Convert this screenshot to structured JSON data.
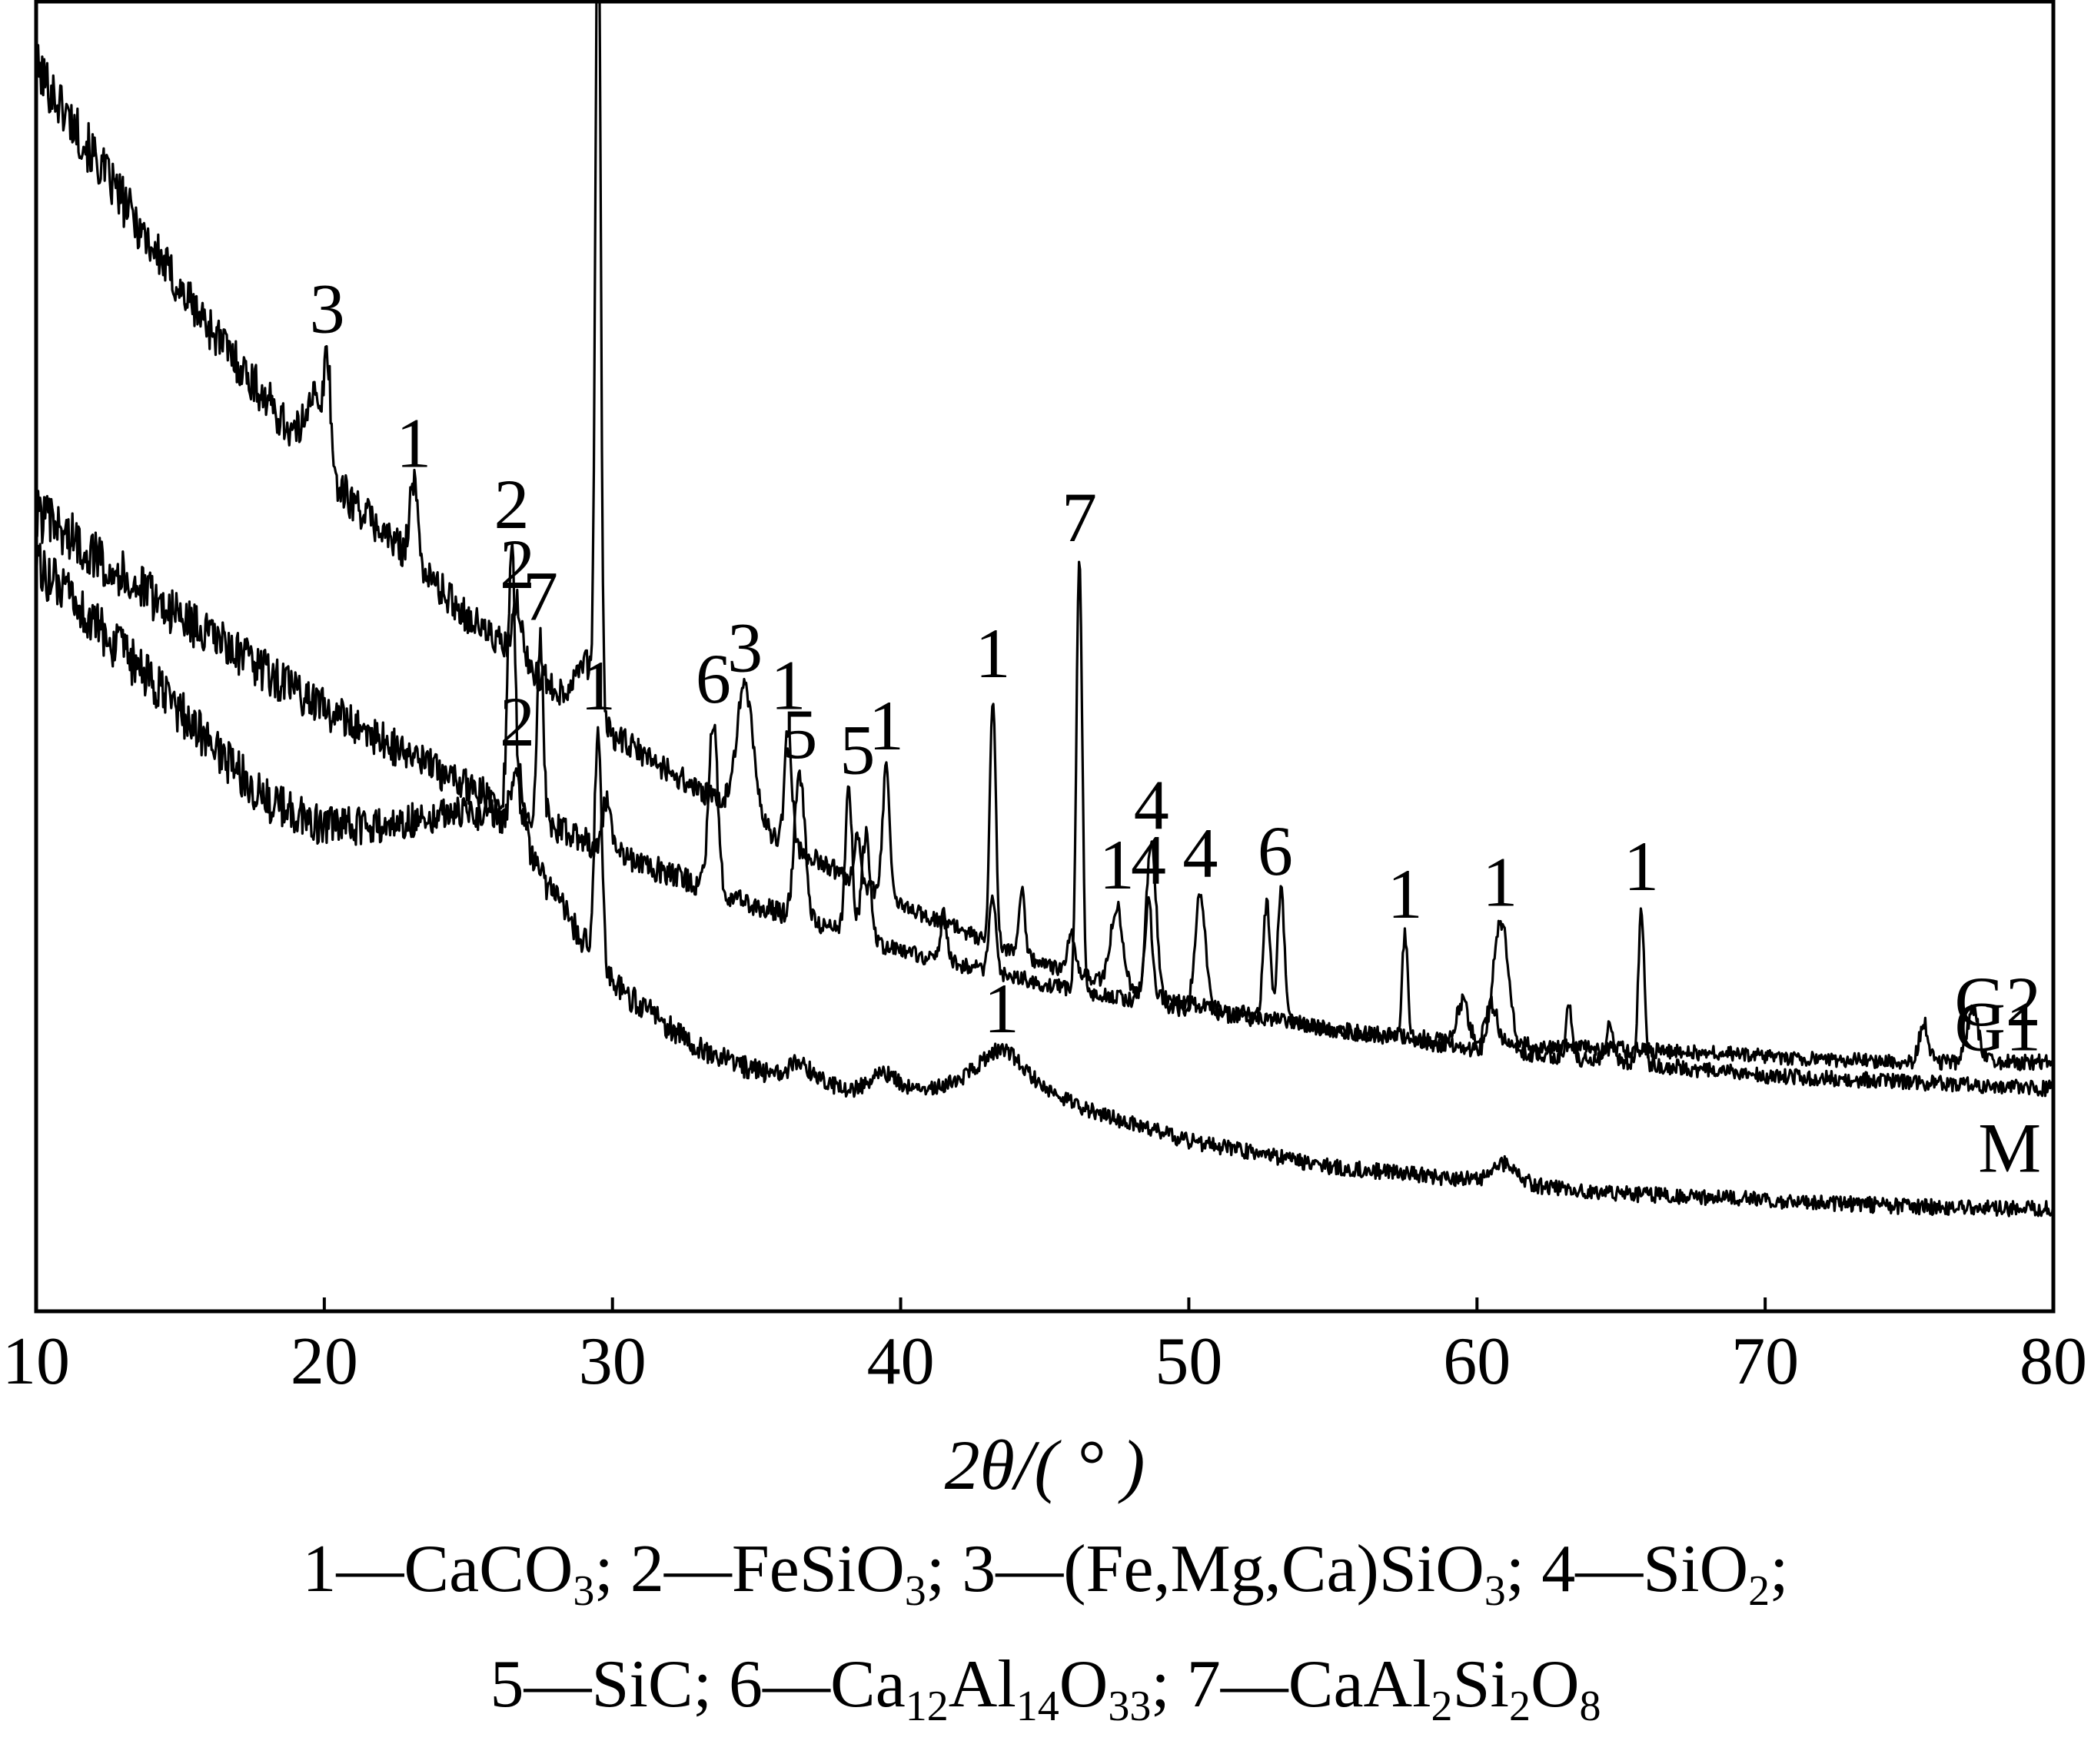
{
  "chart_data": {
    "type": "line",
    "title": "",
    "xlabel": "2θ/( ° )",
    "ylabel": "",
    "xlim": [
      10,
      80
    ],
    "xticks": [
      10,
      20,
      30,
      40,
      50,
      60,
      70,
      80
    ],
    "grid": false,
    "y_axis_shown": false,
    "curve_color": "#000000",
    "series": [
      {
        "name": "G1",
        "baseline": [
          [
            10,
            0.95
          ],
          [
            15,
            0.78
          ],
          [
            20,
            0.64
          ],
          [
            25,
            0.53
          ],
          [
            30,
            0.44
          ],
          [
            35,
            0.37
          ],
          [
            40,
            0.31
          ],
          [
            45,
            0.265
          ],
          [
            50,
            0.235
          ],
          [
            55,
            0.215
          ],
          [
            60,
            0.2
          ],
          [
            65,
            0.19
          ],
          [
            70,
            0.18
          ],
          [
            75,
            0.175
          ],
          [
            80,
            0.17
          ]
        ],
        "peaks": [
          {
            "x": 19.6,
            "h": 0.05,
            "w": 0.25
          },
          {
            "x": 20.1,
            "h": 0.09,
            "w": 0.12
          },
          {
            "x": 23.1,
            "h": 0.06,
            "w": 0.15
          },
          {
            "x": 26.7,
            "h": 0.04,
            "w": 0.15
          },
          {
            "x": 29.5,
            "h": 0.66,
            "w": 0.09
          },
          {
            "x": 29.0,
            "h": 0.04,
            "w": 0.3
          },
          {
            "x": 34.6,
            "h": 0.1,
            "w": 0.3
          },
          {
            "x": 36.1,
            "h": 0.09,
            "w": 0.12
          },
          {
            "x": 38.5,
            "h": 0.04,
            "w": 0.1
          },
          {
            "x": 39.5,
            "h": 0.1,
            "w": 0.12
          },
          {
            "x": 43.2,
            "h": 0.19,
            "w": 0.1
          },
          {
            "x": 44.2,
            "h": 0.05,
            "w": 0.1
          },
          {
            "x": 45.9,
            "h": 0.03,
            "w": 0.12
          },
          {
            "x": 47.5,
            "h": 0.06,
            "w": 0.2
          },
          {
            "x": 48.6,
            "h": 0.07,
            "w": 0.12
          },
          {
            "x": 57.5,
            "h": 0.08,
            "w": 0.1
          },
          {
            "x": 60.7,
            "h": 0.07,
            "w": 0.2
          },
          {
            "x": 61.0,
            "h": 0.06,
            "w": 0.2
          },
          {
            "x": 63.2,
            "h": 0.04,
            "w": 0.1
          },
          {
            "x": 64.6,
            "h": 0.03,
            "w": 0.12
          },
          {
            "x": 65.7,
            "h": 0.12,
            "w": 0.1
          }
        ]
      },
      {
        "name": "G2",
        "baseline": [
          [
            10,
            0.61
          ],
          [
            15,
            0.53
          ],
          [
            20,
            0.46
          ],
          [
            25,
            0.4
          ],
          [
            30,
            0.35
          ],
          [
            35,
            0.31
          ],
          [
            40,
            0.275
          ],
          [
            45,
            0.25
          ],
          [
            50,
            0.23
          ],
          [
            55,
            0.215
          ],
          [
            60,
            0.205
          ],
          [
            65,
            0.2
          ],
          [
            70,
            0.195
          ],
          [
            75,
            0.19
          ],
          [
            80,
            0.19
          ]
        ],
        "peaks": [
          {
            "x": 26.5,
            "h": 0.2,
            "w": 0.12
          },
          {
            "x": 27.5,
            "h": 0.14,
            "w": 0.1
          },
          {
            "x": 29.8,
            "h": 0.04,
            "w": 0.15
          },
          {
            "x": 33.5,
            "h": 0.13,
            "w": 0.15
          },
          {
            "x": 36.5,
            "h": 0.11,
            "w": 0.18
          },
          {
            "x": 38.2,
            "h": 0.11,
            "w": 0.12
          },
          {
            "x": 38.8,
            "h": 0.08,
            "w": 0.15
          },
          {
            "x": 41.5,
            "h": 0.04,
            "w": 0.1
          },
          {
            "x": 43.2,
            "h": 0.06,
            "w": 0.12
          },
          {
            "x": 46.2,
            "h": 0.33,
            "w": 0.1
          },
          {
            "x": 48.7,
            "h": 0.12,
            "w": 0.18
          },
          {
            "x": 50.4,
            "h": 0.09,
            "w": 0.18
          },
          {
            "x": 52.7,
            "h": 0.09,
            "w": 0.12
          },
          {
            "x": 53.2,
            "h": 0.1,
            "w": 0.12
          },
          {
            "x": 59.5,
            "h": 0.03,
            "w": 0.2
          },
          {
            "x": 60.5,
            "h": 0.03,
            "w": 0.2
          },
          {
            "x": 75.5,
            "h": 0.03,
            "w": 0.15
          },
          {
            "x": 77.2,
            "h": 0.04,
            "w": 0.2
          }
        ]
      },
      {
        "name": "M",
        "baseline": [
          [
            10,
            0.57
          ],
          [
            14,
            0.48
          ],
          [
            18,
            0.39
          ],
          [
            20,
            0.37
          ],
          [
            22,
            0.37
          ],
          [
            24,
            0.38
          ],
          [
            26,
            0.38
          ],
          [
            27,
            0.35
          ],
          [
            28.5,
            0.3
          ],
          [
            30,
            0.25
          ],
          [
            33,
            0.2
          ],
          [
            36,
            0.175
          ],
          [
            40,
            0.165
          ],
          [
            43.5,
            0.18
          ],
          [
            47,
            0.15
          ],
          [
            50,
            0.13
          ],
          [
            55,
            0.11
          ],
          [
            60,
            0.1
          ],
          [
            65,
            0.09
          ],
          [
            70,
            0.085
          ],
          [
            75,
            0.08
          ],
          [
            80,
            0.078
          ]
        ],
        "peaks": [
          {
            "x": 26.7,
            "h": 0.06,
            "w": 0.2
          },
          {
            "x": 29.5,
            "h": 0.18,
            "w": 0.12
          },
          {
            "x": 36.5,
            "h": 0.015,
            "w": 0.5
          },
          {
            "x": 39.5,
            "h": 0.015,
            "w": 0.5
          },
          {
            "x": 43.5,
            "h": 0.02,
            "w": 0.8
          },
          {
            "x": 61.0,
            "h": 0.015,
            "w": 0.4
          }
        ]
      }
    ],
    "curve_labels": [
      {
        "series": "G1",
        "text": "G1"
      },
      {
        "series": "G2",
        "text": "G2"
      },
      {
        "series": "M",
        "text": "M"
      }
    ],
    "annotations": [
      {
        "series": "G1",
        "x": 20.1,
        "text": "3"
      },
      {
        "series": "G1",
        "x": 23.1,
        "text": "1"
      },
      {
        "series": "G1",
        "x": 26.7,
        "text": "2"
      },
      {
        "series": "G1",
        "x": 29.5,
        "text": "1"
      },
      {
        "series": "G1",
        "x": 34.6,
        "text": "3"
      },
      {
        "series": "G1",
        "x": 36.1,
        "text": "1"
      },
      {
        "series": "G1",
        "x": 39.5,
        "text": "1"
      },
      {
        "series": "G1",
        "x": 43.2,
        "text": "1"
      },
      {
        "series": "G1",
        "x": 47.5,
        "text": "1"
      },
      {
        "series": "G1",
        "x": 48.6,
        "text": "4"
      },
      {
        "series": "G1",
        "x": 57.5,
        "text": "1"
      },
      {
        "series": "G1",
        "x": 60.8,
        "text": "1"
      },
      {
        "series": "G1",
        "x": 65.7,
        "text": "1"
      },
      {
        "series": "G2",
        "x": 26.5,
        "text": "2"
      },
      {
        "series": "G2",
        "x": 27.5,
        "text": "7"
      },
      {
        "series": "G2",
        "x": 33.5,
        "text": "6"
      },
      {
        "series": "G2",
        "x": 36.5,
        "text": "5"
      },
      {
        "series": "G2",
        "x": 38.5,
        "text": "5"
      },
      {
        "series": "G2",
        "x": 46.2,
        "text": "7"
      },
      {
        "series": "G2",
        "x": 48.7,
        "text": "4"
      },
      {
        "series": "G2",
        "x": 50.4,
        "text": "4"
      },
      {
        "series": "G2",
        "x": 53.0,
        "text": "6"
      },
      {
        "series": "M",
        "x": 26.7,
        "text": "2"
      },
      {
        "series": "M",
        "x": 29.5,
        "text": "1"
      },
      {
        "series": "M",
        "x": 43.5,
        "text": "1"
      }
    ]
  },
  "legend": {
    "line1": [
      {
        "t": "1—CaCO"
      },
      {
        "s": "3"
      },
      {
        "t": "; 2—FeSiO"
      },
      {
        "s": "3"
      },
      {
        "t": "; 3—(Fe,Mg,Ca)SiO"
      },
      {
        "s": "3"
      },
      {
        "t": "; 4—SiO"
      },
      {
        "s": "2"
      },
      {
        "t": ";"
      }
    ],
    "line2": [
      {
        "t": "5—SiC; 6—Ca"
      },
      {
        "s": "12"
      },
      {
        "t": "Al"
      },
      {
        "s": "14"
      },
      {
        "t": "O"
      },
      {
        "s": "33"
      },
      {
        "t": "; 7—CaAl"
      },
      {
        "s": "2"
      },
      {
        "t": "Si"
      },
      {
        "s": "2"
      },
      {
        "t": "O"
      },
      {
        "s": "8"
      }
    ]
  }
}
